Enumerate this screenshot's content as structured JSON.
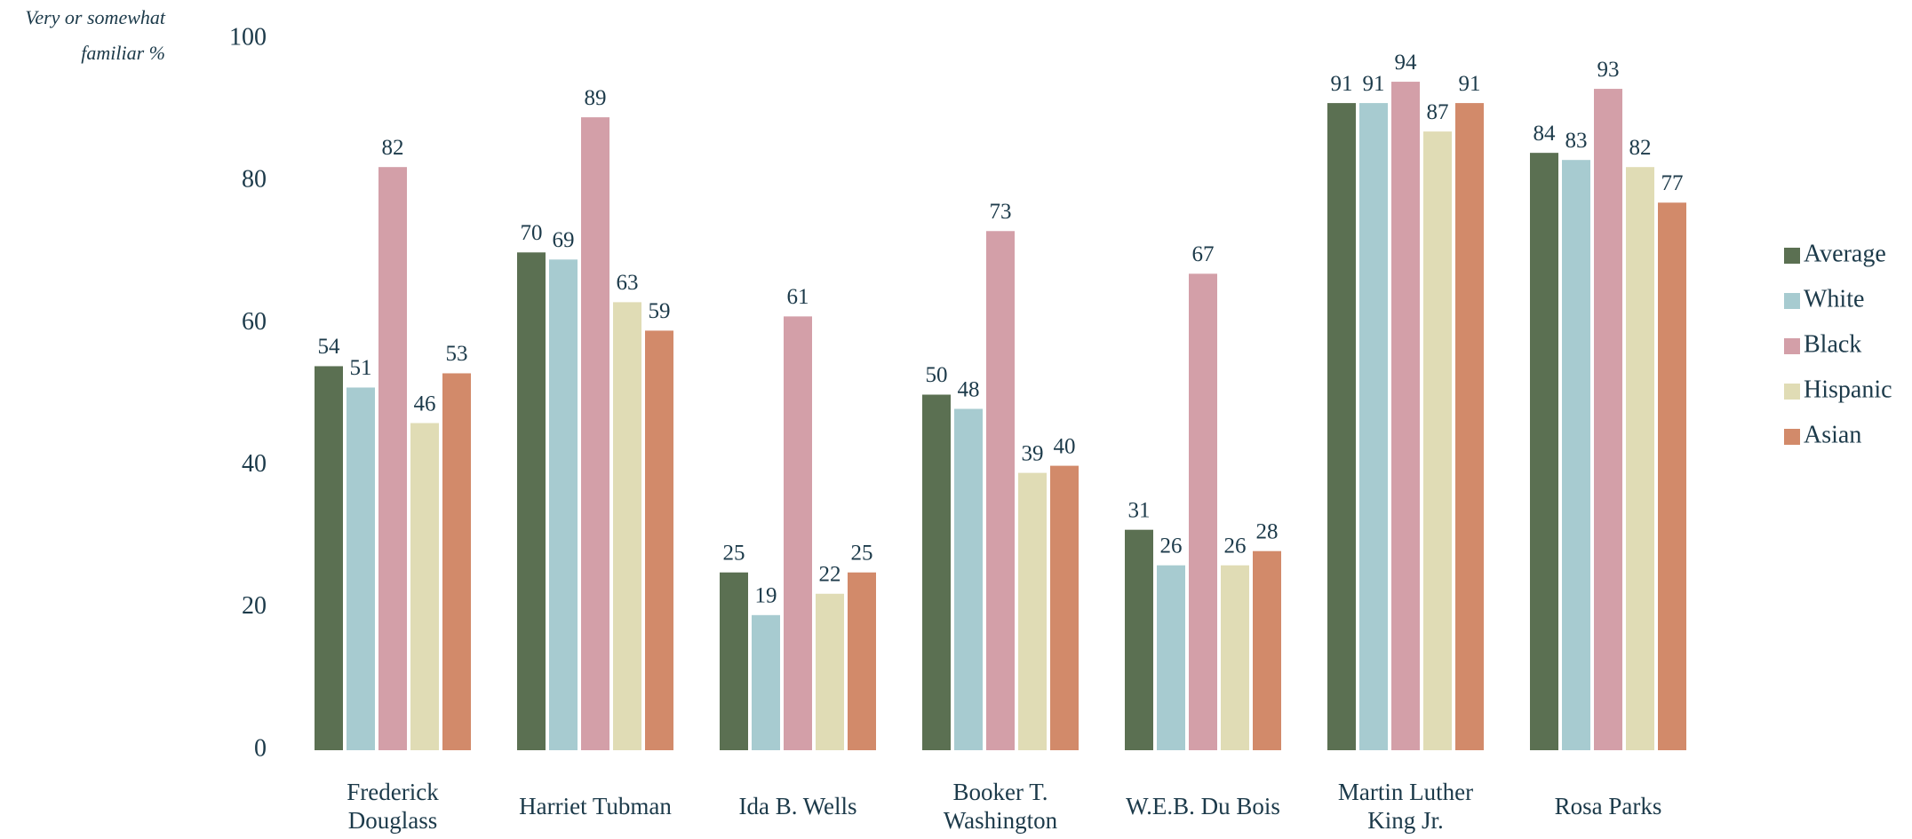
{
  "chart_data": {
    "type": "bar",
    "y_label": "Very or somewhat familiar %",
    "categories": [
      "Frederick Douglass",
      "Harriet Tubman",
      "Ida B. Wells",
      "Booker T. Washington",
      "W.E.B. Du Bois",
      "Martin Luther King Jr.",
      "Rosa Parks"
    ],
    "series": [
      {
        "name": "Average",
        "color": "#5b7052",
        "values": [
          54,
          70,
          25,
          50,
          31,
          91,
          84
        ]
      },
      {
        "name": "White",
        "color": "#a7cbd0",
        "values": [
          51,
          69,
          19,
          48,
          26,
          91,
          83
        ]
      },
      {
        "name": "Black",
        "color": "#d39fa8",
        "values": [
          82,
          89,
          61,
          73,
          67,
          94,
          93
        ]
      },
      {
        "name": "Hispanic",
        "color": "#e0dcb5",
        "values": [
          46,
          63,
          22,
          39,
          26,
          87,
          82
        ]
      },
      {
        "name": "Asian",
        "color": "#d28a6a",
        "values": [
          53,
          59,
          25,
          40,
          28,
          91,
          77
        ]
      }
    ],
    "ylim": [
      0,
      100
    ],
    "yticks": [
      0,
      20,
      40,
      60,
      80,
      100
    ],
    "grid": false,
    "legend": "right"
  }
}
